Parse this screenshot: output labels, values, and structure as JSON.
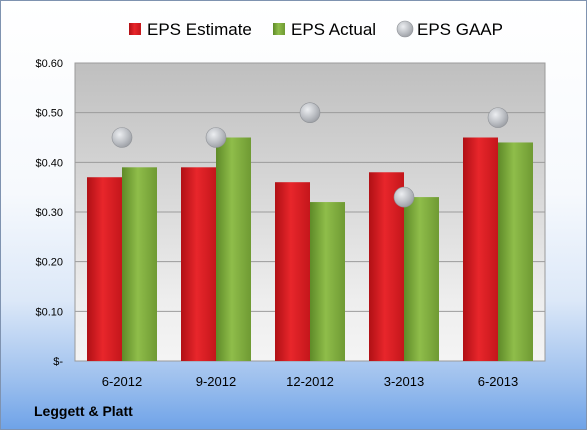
{
  "company": "Leggett & Platt",
  "chart_data": {
    "type": "bar",
    "categories": [
      "6-2012",
      "9-2012",
      "12-2012",
      "3-2013",
      "6-2013"
    ],
    "series": [
      {
        "name": "EPS Estimate",
        "kind": "bar",
        "color": "#e01f24",
        "values": [
          0.37,
          0.39,
          0.36,
          0.38,
          0.45
        ]
      },
      {
        "name": "EPS Actual",
        "kind": "bar",
        "color": "#7dab3a",
        "values": [
          0.39,
          0.45,
          0.32,
          0.33,
          0.44
        ]
      },
      {
        "name": "EPS GAAP",
        "kind": "marker",
        "color": "#c9ccd1",
        "values": [
          0.45,
          0.45,
          0.5,
          0.33,
          0.49
        ]
      }
    ],
    "ylim": [
      0,
      0.6
    ],
    "yticks": [
      0,
      0.1,
      0.2,
      0.3,
      0.4,
      0.5,
      0.6
    ],
    "ytick_labels": [
      "$-",
      "$0.10",
      "$0.20",
      "$0.30",
      "$0.40",
      "$0.50",
      "$0.60"
    ],
    "grid": true,
    "legend": "top"
  }
}
